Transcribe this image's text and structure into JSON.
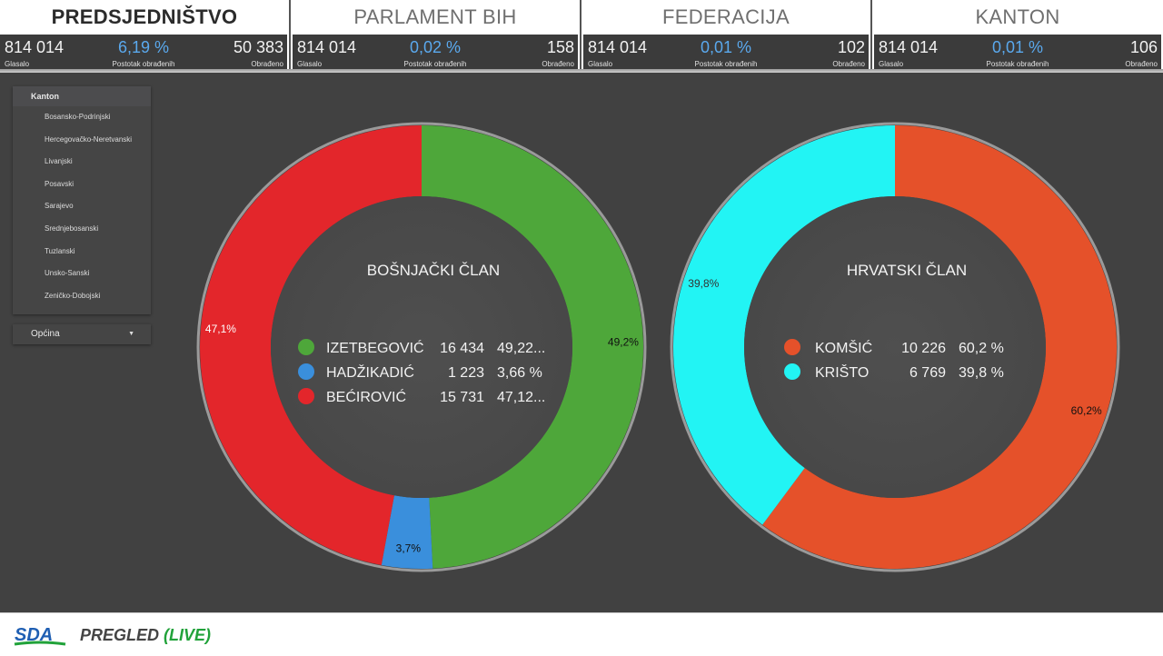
{
  "tabs": [
    {
      "title": "PREDSJEDNIŠTVO",
      "active": true,
      "voted": "814 014",
      "voted_label": "Glasalo",
      "percent": "6,19 %",
      "percent_label": "Postotak obrađenih",
      "processed": "50 383",
      "processed_label": "Obrađeno"
    },
    {
      "title": "PARLAMENT BIH",
      "active": false,
      "voted": "814 014",
      "voted_label": "Glasalo",
      "percent": "0,02 %",
      "percent_label": "Postotak obrađenih",
      "processed": "158",
      "processed_label": "Obrađeno"
    },
    {
      "title": "FEDERACIJA",
      "active": false,
      "voted": "814 014",
      "voted_label": "Glasalo",
      "percent": "0,01 %",
      "percent_label": "Postotak obrađenih",
      "processed": "102",
      "processed_label": "Obrađeno"
    },
    {
      "title": "KANTON",
      "active": false,
      "voted": "814 014",
      "voted_label": "Glasalo",
      "percent": "0,01 %",
      "percent_label": "Postotak obrađenih",
      "processed": "106",
      "processed_label": "Obrađeno"
    }
  ],
  "filters": {
    "kanton_label": "Kanton",
    "kanton_items": [
      "Bosansko-Podrinjski",
      "Hercegovačko-Neretvanski",
      "Livanjski",
      "Posavski",
      "Sarajevo",
      "Srednjebosanski",
      "Tuzlanski",
      "Unsko-Sanski",
      "Zeničko-Dobojski"
    ],
    "opcina_label": "Općina"
  },
  "chart_data": [
    {
      "type": "pie",
      "title": "BOŠNJAČKI ČLAN",
      "series": [
        {
          "name": "IZETBEGOVIĆ",
          "votes": "16 434",
          "percent_text": "49,22...",
          "value": 49.2,
          "slice_label": "49,2%",
          "color": "#4ea73a"
        },
        {
          "name": "HADŽIKADIĆ",
          "votes": "1 223",
          "percent_text": "3,66 %",
          "value": 3.7,
          "slice_label": "3,7%",
          "color": "#3a8fdc"
        },
        {
          "name": "BEĆIROVIĆ",
          "votes": "15 731",
          "percent_text": "47,12...",
          "value": 47.1,
          "slice_label": "47,1%",
          "color": "#e3262b"
        }
      ]
    },
    {
      "type": "pie",
      "title": "HRVATSKI ČLAN",
      "series": [
        {
          "name": "KOMŠIĆ",
          "votes": "10 226",
          "percent_text": "60,2 %",
          "value": 60.2,
          "slice_label": "60,2%",
          "color": "#e5512a"
        },
        {
          "name": "KRIŠTO",
          "votes": "6 769",
          "percent_text": "39,8 %",
          "value": 39.8,
          "slice_label": "39,8%",
          "color": "#22f4f4"
        }
      ]
    }
  ],
  "footer": {
    "logo_text": "SDA",
    "title": "PREGLED",
    "live": "(LIVE)"
  },
  "colors": {
    "background": "#414141",
    "accent_blue": "#5aa9ee",
    "logo_blue": "#1f5fb3",
    "logo_green": "#21a23a"
  }
}
